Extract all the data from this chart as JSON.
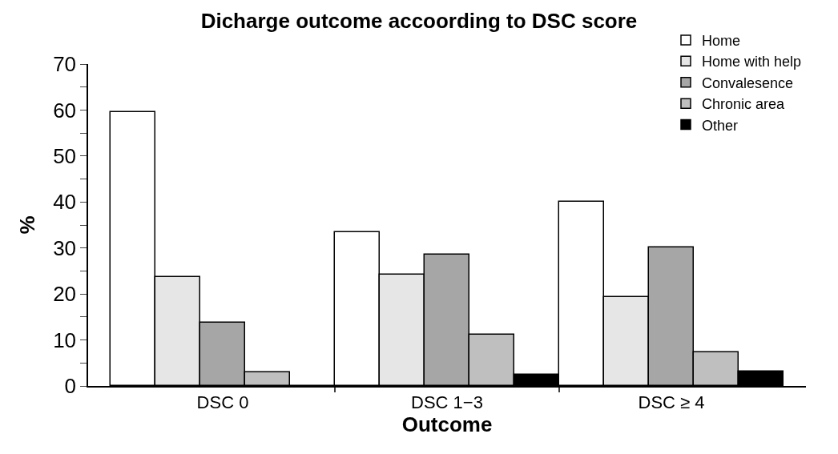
{
  "chart_data": {
    "type": "bar",
    "title": "Dicharge outcome accoording to DSC score",
    "xlabel": "Outcome",
    "ylabel": "%",
    "categories": [
      "DSC 0",
      "DSC 1−3",
      "DSC ≥ 4"
    ],
    "series": [
      {
        "name": "Home",
        "color": "#ffffff",
        "values": [
          59.6,
          33.5,
          40.0
        ]
      },
      {
        "name": "Home with help",
        "color": "#e6e6e6",
        "values": [
          23.6,
          24.2,
          19.3
        ]
      },
      {
        "name": "Convalesence",
        "color": "#a6a6a6",
        "values": [
          13.7,
          28.5,
          30.1
        ]
      },
      {
        "name": "Chronic area",
        "color": "#bfbfbf",
        "values": [
          2.9,
          11.1,
          7.4
        ]
      },
      {
        "name": "Other",
        "color": "#000000",
        "values": [
          0,
          2.4,
          3.1
        ]
      }
    ],
    "ylim": [
      0,
      70
    ],
    "yticks": [
      0,
      {
        "value": 5,
        "label": null
      },
      10,
      {
        "value": 15,
        "label": null
      },
      20,
      {
        "value": 25,
        "label": null
      },
      30,
      {
        "value": 35,
        "label": null
      },
      40,
      {
        "value": 45,
        "label": null
      },
      50,
      {
        "value": 55,
        "label": null
      },
      60,
      {
        "value": 65,
        "label": null
      },
      70
    ],
    "legend": "top right"
  }
}
